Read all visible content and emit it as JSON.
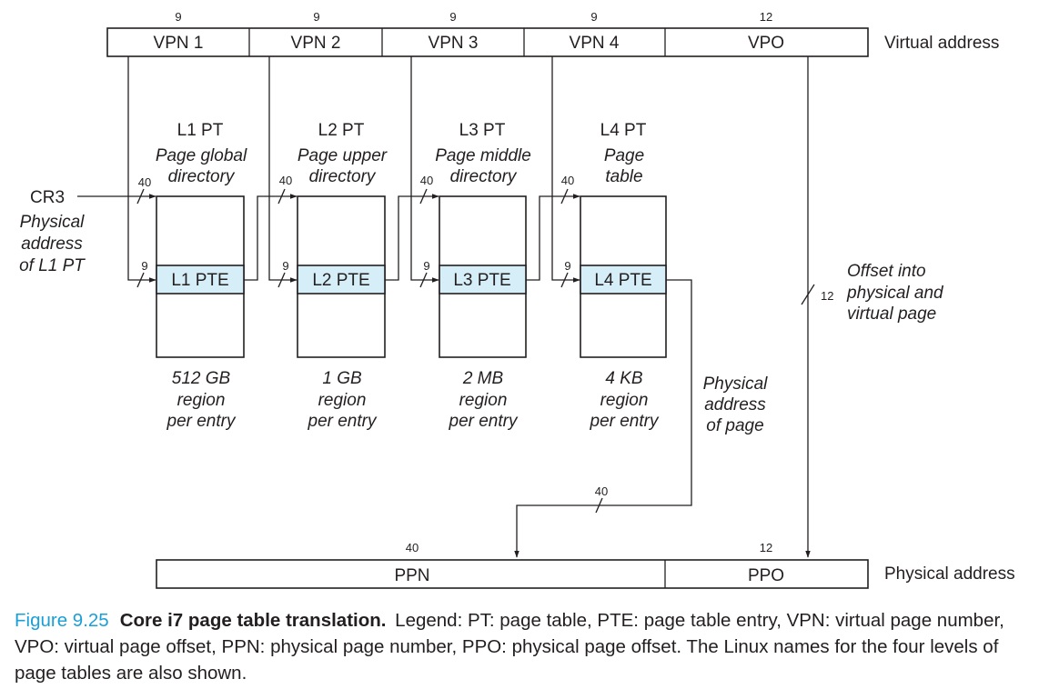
{
  "virtual_address": {
    "fields": [
      {
        "label": "VPN 1",
        "bits": "9"
      },
      {
        "label": "VPN 2",
        "bits": "9"
      },
      {
        "label": "VPN 3",
        "bits": "9"
      },
      {
        "label": "VPN 4",
        "bits": "9"
      },
      {
        "label": "VPO",
        "bits": "12"
      }
    ],
    "label": "Virtual address"
  },
  "levels": [
    {
      "name": "L1 PT",
      "linux_name": [
        "Page global",
        "directory"
      ],
      "pte": "L1 PTE",
      "in_bits": "40",
      "index_bits": "9",
      "region": [
        "512 GB",
        "region",
        "per entry"
      ]
    },
    {
      "name": "L2 PT",
      "linux_name": [
        "Page upper",
        "directory"
      ],
      "pte": "L2 PTE",
      "in_bits": "40",
      "index_bits": "9",
      "region": [
        "1 GB",
        "region",
        "per entry"
      ]
    },
    {
      "name": "L3 PT",
      "linux_name": [
        "Page middle",
        "directory"
      ],
      "pte": "L3 PTE",
      "in_bits": "40",
      "index_bits": "9",
      "region": [
        "2 MB",
        "region",
        "per entry"
      ]
    },
    {
      "name": "L4 PT",
      "linux_name": [
        "Page",
        "table"
      ],
      "pte": "L4 PTE",
      "in_bits": "40",
      "index_bits": "9",
      "region": [
        "4 KB",
        "region",
        "per entry"
      ]
    }
  ],
  "cr3": {
    "label": "CR3",
    "description": [
      "Physical",
      "address",
      "of L1 PT"
    ]
  },
  "offset": {
    "bits": "12",
    "description": [
      "Offset into",
      "physical and",
      "virtual page"
    ]
  },
  "page_address": {
    "bits": "40",
    "description": [
      "Physical",
      "address",
      "of page"
    ]
  },
  "physical_address": {
    "fields": [
      {
        "label": "PPN",
        "bits": "40"
      },
      {
        "label": "PPO",
        "bits": "12"
      }
    ],
    "label": "Physical address"
  },
  "caption": {
    "figure_number": "Figure 9.25",
    "title": "Core i7 page table translation.",
    "text": "Legend: PT: page table, PTE: page table entry, VPN: virtual page number, VPO: virtual page offset, PPN: physical page number, PPO: physical page offset. The Linux names for the four levels of page tables are also shown."
  }
}
